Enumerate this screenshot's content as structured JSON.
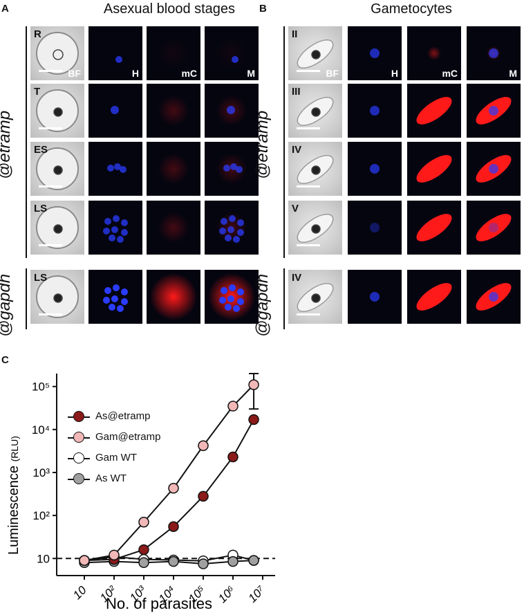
{
  "panels": {
    "a": {
      "letter": "A",
      "title": "Asexual blood stages",
      "row_label_top": "@etramp",
      "row_label_bottom": "@gapdh",
      "stages": [
        "R",
        "T",
        "ES",
        "LS",
        "LS"
      ]
    },
    "b": {
      "letter": "B",
      "title": "Gametocytes",
      "row_label_top": "@etramp",
      "row_label_bottom": "@gapdh",
      "stages": [
        "II",
        "III",
        "IV",
        "V",
        "IV"
      ]
    },
    "c": {
      "letter": "C"
    }
  },
  "channel_labels": {
    "bf": "BF",
    "h": "H",
    "mc": "mC",
    "m": "M"
  },
  "colors": {
    "nucleus_blue": "#2a3cff",
    "mcherry_red": "#ff1a1a",
    "as_etramp": "#8b1a1a",
    "gam_etramp": "#f2b8b8",
    "gam_wt": "#ffffff",
    "as_wt": "#a0a0a0"
  },
  "chart_data": {
    "type": "line",
    "xlabel": "No. of parasites",
    "ylabel": "Luminescence",
    "ylabel_unit": "(RLU)",
    "x_scale": "log",
    "y_scale": "log",
    "x_ticks": [
      "10",
      "10²",
      "10³",
      "10⁴",
      "10⁵",
      "10⁶",
      "10⁷"
    ],
    "y_ticks": [
      "10",
      "10²",
      "10³",
      "10⁴",
      "10⁵"
    ],
    "xlim": [
      10,
      10000000
    ],
    "ylim": [
      4,
      200000
    ],
    "threshold": 10,
    "x": [
      10,
      100,
      1000,
      10000,
      100000,
      1000000,
      5000000
    ],
    "series": [
      {
        "name": "As@etramp",
        "values": [
          9,
          9.5,
          16,
          55,
          280,
          2300,
          17000
        ]
      },
      {
        "name": "Gam@etramp",
        "values": [
          9,
          12,
          70,
          430,
          4200,
          35000,
          110000
        ],
        "error_top_last": 200000,
        "error_bottom_last": 30000
      },
      {
        "name": "Gam WT",
        "values": [
          9,
          11,
          9.5,
          9.2,
          8.8,
          12,
          9
        ]
      },
      {
        "name": "As WT",
        "values": [
          8,
          8.5,
          8,
          8.5,
          7.5,
          8.5,
          9
        ]
      }
    ],
    "legend_position": "top-left"
  }
}
